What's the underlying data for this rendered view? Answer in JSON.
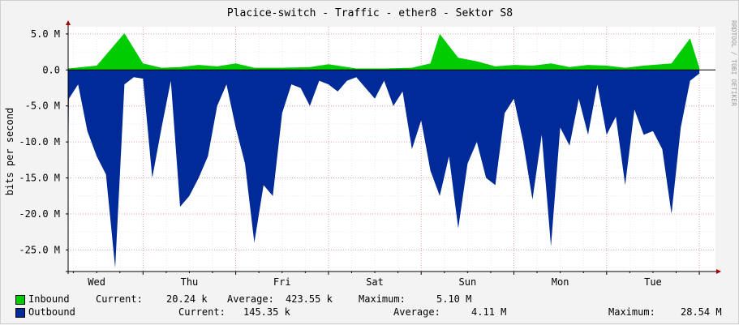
{
  "watermark": "RRDTOOL / TOBI OETIKER",
  "colors": {
    "background": "#f3f3f3",
    "canvas": "#ffffff",
    "grid": "#e6a0a0",
    "inbound": "#00cc00",
    "outbound": "#002a97",
    "axis": "#000000"
  },
  "chart_data": {
    "type": "area",
    "title": "Placice-switch - Traffic - ether8 - Sektor S8",
    "ylabel": "bits per second",
    "xlabel": "",
    "ylim": [
      -28000000,
      6000000
    ],
    "yticks": [
      5000000,
      0,
      -5000000,
      -10000000,
      -15000000,
      -20000000,
      -25000000
    ],
    "yticklabels": [
      "5.0 M",
      "0.0",
      "-5.0 M",
      "-10.0 M",
      "-15.0 M",
      "-20.0 M",
      "-25.0 M"
    ],
    "days": [
      "Wed",
      "Thu",
      "Fri",
      "Sat",
      "Sun",
      "Mon",
      "Tue"
    ],
    "grid": true,
    "series": [
      {
        "name": "Inbound",
        "color": "#00cc00",
        "x_days": [
          0.0,
          0.5,
          0.8,
          1.0,
          1.2,
          1.4,
          1.6,
          1.8,
          2.0,
          2.2,
          2.5,
          2.8,
          3.0,
          3.3,
          3.6,
          3.9,
          4.1,
          4.2,
          4.4,
          4.6,
          4.8,
          5.0,
          5.2,
          5.4,
          5.6,
          5.8,
          6.0,
          6.2,
          6.4,
          6.7,
          6.9,
          7.0
        ],
        "values": [
          200000,
          600000,
          5100000,
          900000,
          300000,
          400000,
          700000,
          500000,
          900000,
          300000,
          300000,
          400000,
          800000,
          200000,
          200000,
          300000,
          900000,
          5000000,
          1700000,
          1200000,
          500000,
          700000,
          600000,
          900000,
          400000,
          700000,
          600000,
          300000,
          600000,
          900000,
          4400000,
          300000
        ]
      },
      {
        "name": "Outbound",
        "color": "#002a97",
        "x_days": [
          0.0,
          0.1,
          0.2,
          0.3,
          0.4,
          0.5,
          0.6,
          0.7,
          0.8,
          0.9,
          1.0,
          1.1,
          1.2,
          1.3,
          1.4,
          1.5,
          1.6,
          1.7,
          1.8,
          1.9,
          2.0,
          2.1,
          2.2,
          2.3,
          2.4,
          2.5,
          2.6,
          2.7,
          2.8,
          2.9,
          3.0,
          3.1,
          3.2,
          3.3,
          3.4,
          3.5,
          3.6,
          3.7,
          3.8,
          3.9,
          4.0,
          4.1,
          4.2,
          4.3,
          4.4,
          4.5,
          4.6,
          4.7,
          4.8,
          4.9,
          5.0,
          5.1,
          5.2,
          5.3,
          5.4,
          5.5,
          5.6,
          5.7,
          5.8,
          5.9,
          6.0,
          6.1,
          6.2,
          6.3,
          6.4,
          6.5,
          6.6,
          6.7,
          6.8,
          6.9,
          7.0
        ],
        "values": [
          -8000000,
          -15500000,
          -4000000,
          -2000000,
          -8500000,
          -12000000,
          -14500000,
          -27500000,
          -2000000,
          -1000000,
          -1200000,
          -15000000,
          -8000000,
          -1500000,
          -19000000,
          -17500000,
          -15000000,
          -12000000,
          -5000000,
          -2000000,
          -8000000,
          -13000000,
          -24000000,
          -16000000,
          -17500000,
          -6000000,
          -2000000,
          -2500000,
          -5000000,
          -1500000,
          -2000000,
          -3000000,
          -1500000,
          -1000000,
          -2500000,
          -4000000,
          -1500000,
          -5000000,
          -3000000,
          -11000000,
          -7000000,
          -14000000,
          -17500000,
          -12000000,
          -22000000,
          -13000000,
          -10000000,
          -15000000,
          -16000000,
          -6000000,
          -4000000,
          -10000000,
          -18000000,
          -9000000,
          -24500000,
          -8000000,
          -10500000,
          -4000000,
          -9000000,
          -2000000,
          -9000000,
          -6500000,
          -16000000,
          -5500000,
          -9000000,
          -8500000,
          -11000000,
          -20000000,
          -8000000,
          -1500000,
          -500000
        ]
      }
    ]
  },
  "legend": {
    "inbound": {
      "name": "Inbound",
      "current_label": "Current:",
      "current_value": "20.24 k",
      "average_label": "Average:",
      "average_value": "423.55 k",
      "maximum_label": "Maximum:",
      "maximum_value": "5.10 M"
    },
    "outbound": {
      "name": "Outbound",
      "current_label": "Current:",
      "current_value": "145.35 k",
      "average_label": "Average:",
      "average_value": "4.11 M",
      "maximum_label": "Maximum:",
      "maximum_value": "28.54 M"
    }
  }
}
